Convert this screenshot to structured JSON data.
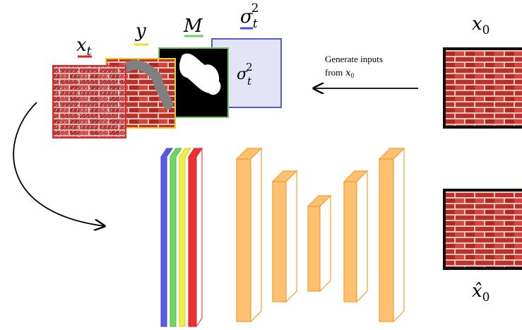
{
  "inputs": {
    "x_t": {
      "base": "x",
      "sub": "t"
    },
    "y": {
      "base": "y"
    },
    "M": {
      "base": "M"
    },
    "sigma": {
      "base": "σ",
      "sub": "t",
      "sup": "2"
    }
  },
  "sigma_box_label": {
    "base": "σ",
    "sub": "t",
    "sup": "2"
  },
  "x0": {
    "base": "x",
    "sub": "0"
  },
  "x0_hat": {
    "base": "x̂",
    "sub": "0"
  },
  "arrow_label": {
    "line1": "Generate inputs",
    "line2": "from",
    "line2_math": {
      "base": "x",
      "sub": "0"
    }
  }
}
